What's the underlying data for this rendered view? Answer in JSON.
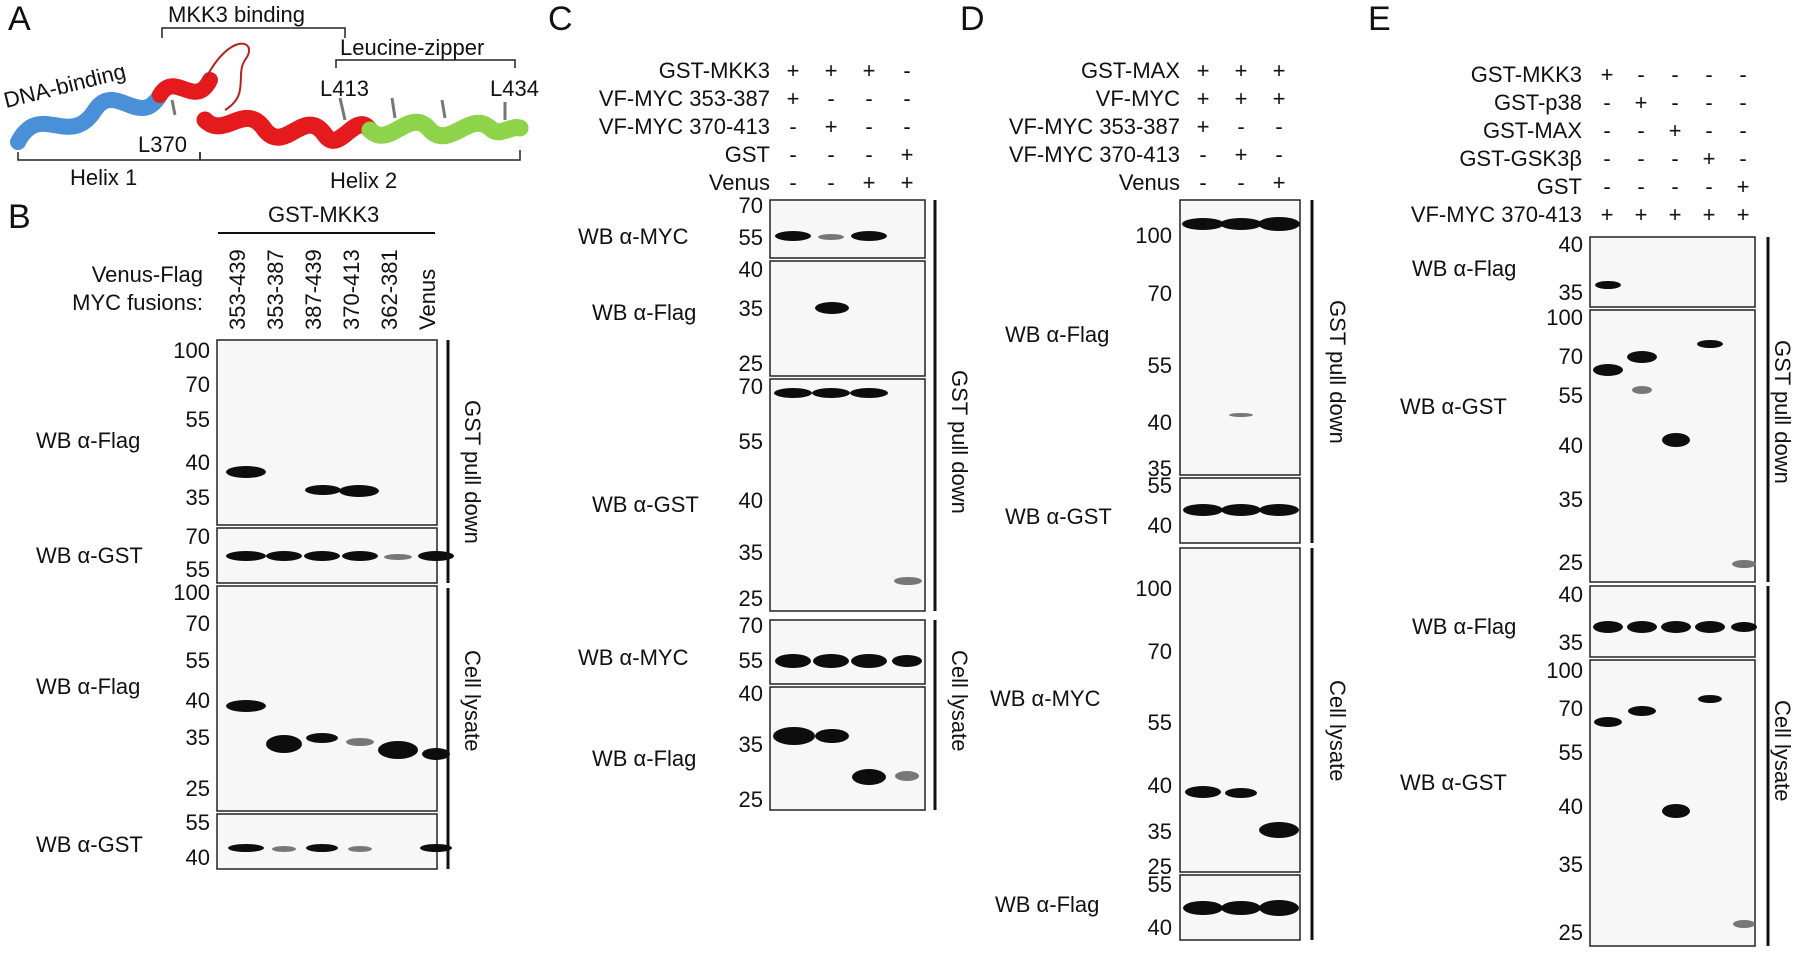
{
  "panels": {
    "A": {
      "letter": "A",
      "mkk3_binding": "MKK3 binding",
      "dna_binding": "DNA-binding",
      "leucine_zipper": "Leucine-zipper",
      "l370": "L370",
      "l413": "L413",
      "l434": "L434",
      "helix1": "Helix 1",
      "helix2": "Helix 2",
      "colors": {
        "dna": "#4a90d9",
        "helix2": "#e41a1c",
        "zipper": "#8ed44a",
        "loop": "#b22222"
      }
    },
    "B": {
      "letter": "B",
      "header": "GST-MKK3",
      "row_label_1": "Venus-Flag",
      "row_label_2": "MYC fusions:",
      "lanes": [
        "353-439",
        "353-387",
        "387-439",
        "370-413",
        "362-381",
        "Venus"
      ],
      "wb_flag_1": "WB α-Flag",
      "wb_gst_1": "WB α-GST",
      "wb_flag_2": "WB α-Flag",
      "wb_gst_2": "WB α-GST",
      "mw_flag1": [
        "100",
        "70",
        "55",
        "40",
        "35"
      ],
      "mw_gst1": [
        "70",
        "55"
      ],
      "mw_flag2": [
        "100",
        "70",
        "55",
        "40",
        "35",
        "25"
      ],
      "mw_gst2": [
        "55",
        "40"
      ],
      "side_top": "GST pull down",
      "side_bottom": "Cell lysate"
    },
    "C": {
      "letter": "C",
      "rows": [
        {
          "label": "GST-MKK3",
          "signs": [
            "+",
            "+",
            "+",
            "-"
          ]
        },
        {
          "label": "VF-MYC 353-387",
          "signs": [
            "+",
            "-",
            "-",
            "-"
          ]
        },
        {
          "label": "VF-MYC 370-413",
          "signs": [
            "-",
            "+",
            "-",
            "-"
          ]
        },
        {
          "label": "GST",
          "signs": [
            "-",
            "-",
            "-",
            "+"
          ]
        },
        {
          "label": "Venus",
          "signs": [
            "-",
            "-",
            "+",
            "+"
          ]
        }
      ],
      "wb_myc_1": "WB α-MYC",
      "wb_flag_1": "WB α-Flag",
      "wb_gst": "WB α-GST",
      "wb_myc_2": "WB α-MYC",
      "wb_flag_2": "WB α-Flag",
      "mw_myc1": [
        "70",
        "55"
      ],
      "mw_flag1": [
        "40",
        "35",
        "25"
      ],
      "mw_gst": [
        "70",
        "55",
        "40",
        "35",
        "25"
      ],
      "mw_myc2": [
        "70",
        "55"
      ],
      "mw_flag2": [
        "40",
        "35",
        "25"
      ],
      "side_top": "GST pull down",
      "side_bottom": "Cell lysate"
    },
    "D": {
      "letter": "D",
      "rows": [
        {
          "label": "GST-MAX",
          "signs": [
            "+",
            "+",
            "+"
          ]
        },
        {
          "label": "VF-MYC",
          "signs": [
            "+",
            "+",
            "+"
          ]
        },
        {
          "label": "VF-MYC 353-387",
          "signs": [
            "+",
            "-",
            "-"
          ]
        },
        {
          "label": "VF-MYC 370-413",
          "signs": [
            "-",
            "+",
            "-"
          ]
        },
        {
          "label": "Venus",
          "signs": [
            "-",
            "-",
            "+"
          ]
        }
      ],
      "wb_flag_1": "WB α-Flag",
      "wb_gst": "WB α-GST",
      "wb_myc": "WB α-MYC",
      "wb_flag_2": "WB α-Flag",
      "mw_flag1": [
        "100",
        "70",
        "55",
        "40",
        "35"
      ],
      "mw_gst": [
        "55",
        "40"
      ],
      "mw_myc": [
        "100",
        "70",
        "55",
        "40",
        "35",
        "25"
      ],
      "mw_flag2": [
        "55",
        "40"
      ],
      "side_top": "GST pull down",
      "side_bottom": "Cell lysate"
    },
    "E": {
      "letter": "E",
      "rows": [
        {
          "label": "GST-MKK3",
          "signs": [
            "+",
            "-",
            "-",
            "-",
            "-"
          ]
        },
        {
          "label": "GST-p38",
          "signs": [
            "-",
            "+",
            "-",
            "-",
            "-"
          ]
        },
        {
          "label": "GST-MAX",
          "signs": [
            "-",
            "-",
            "+",
            "-",
            "-"
          ]
        },
        {
          "label": "GST-GSK3β",
          "signs": [
            "-",
            "-",
            "-",
            "+",
            "-"
          ]
        },
        {
          "label": "GST",
          "signs": [
            "-",
            "-",
            "-",
            "-",
            "+"
          ]
        },
        {
          "label": "VF-MYC 370-413",
          "signs": [
            "+",
            "+",
            "+",
            "+",
            "+"
          ]
        }
      ],
      "wb_flag_1": "WB α-Flag",
      "wb_gst_1": "WB α-GST",
      "wb_flag_2": "WB α-Flag",
      "wb_gst_2": "WB α-GST",
      "mw_flag1": [
        "40",
        "35"
      ],
      "mw_gst1": [
        "100",
        "70",
        "55",
        "40",
        "35",
        "25"
      ],
      "mw_flag2": [
        "40",
        "35"
      ],
      "mw_gst2": [
        "100",
        "70",
        "55",
        "40",
        "35",
        "25"
      ],
      "side_top": "GST pull down",
      "side_bottom": "Cell lysate"
    }
  }
}
